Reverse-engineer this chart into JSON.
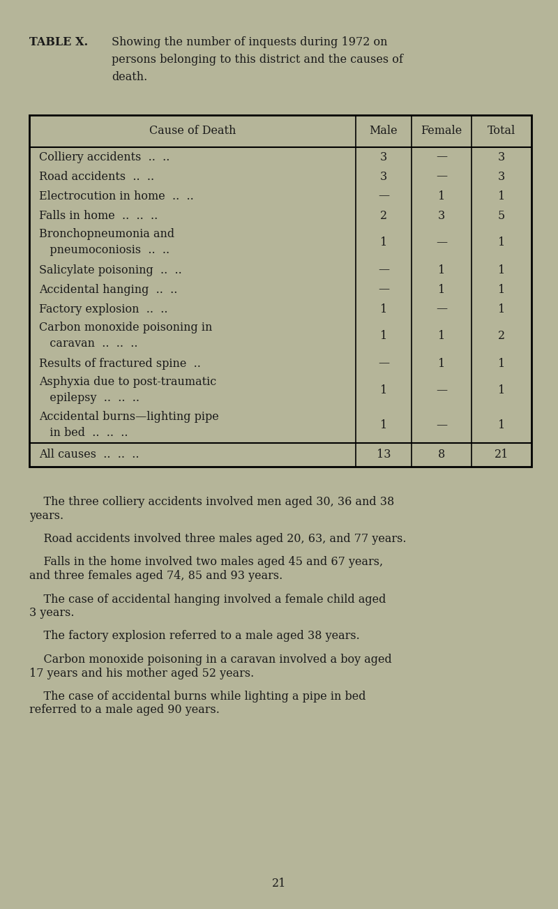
{
  "bg_color": "#b5b599",
  "text_color": "#1a1a1a",
  "title_label": "TABLE X.",
  "title_text": "Showing the number of inquests during 1972 on\npersons belonging to this district and the causes of\ndeath.",
  "table_header": [
    "Cause of Death",
    "Male",
    "Female",
    "Total"
  ],
  "table_rows": [
    [
      "Colliery accidents  ..  ..",
      "3",
      "—",
      "3"
    ],
    [
      "Road accidents  ..  ..",
      "3",
      "—",
      "3"
    ],
    [
      "Electrocution in home  ..  ..",
      "—",
      "1",
      "1"
    ],
    [
      "Falls in home  ..  ..  ..",
      "2",
      "3",
      "5"
    ],
    [
      "Bronchopneumonia and\n   pneumoconiosis  ..  ..",
      "1",
      "—",
      "1"
    ],
    [
      "Salicylate poisoning  ..  ..",
      "—",
      "1",
      "1"
    ],
    [
      "Accidental hanging  ..  ..",
      "—",
      "1",
      "1"
    ],
    [
      "Factory explosion  ..  ..",
      "1",
      "—",
      "1"
    ],
    [
      "Carbon monoxide poisoning in\n   caravan  ..  ..  ..",
      "1",
      "1",
      "2"
    ],
    [
      "Results of fractured spine  ..",
      "—",
      "1",
      "1"
    ],
    [
      "Asphyxia due to post-traumatic\n   epilepsy  ..  ..  ..",
      "1",
      "—",
      "1"
    ],
    [
      "Accidental burns—lighting pipe\n   in bed  ..  ..  ..",
      "1",
      "—",
      "1"
    ]
  ],
  "table_footer": [
    "All causes  ..  ..  ..",
    "13",
    "8",
    "21"
  ],
  "paragraphs": [
    [
      "    The three colliery accidents involved men aged 30, 36 and 38",
      "years."
    ],
    [
      "    Road accidents involved three males aged 20, 63, and 77 years."
    ],
    [
      "    Falls in the home involved two males aged 45 and 67 years,",
      "and three females aged 74, 85 and 93 years."
    ],
    [
      "    The case of accidental hanging involved a female child aged",
      "3 years."
    ],
    [
      "    The factory explosion referred to a male aged 38 years."
    ],
    [
      "    Carbon monoxide poisoning in a caravan involved a boy aged",
      "17 years and his mother aged 52 years."
    ],
    [
      "    The case of accidental burns while lighting a pipe in bed",
      "referred to a male aged 90 years."
    ]
  ],
  "page_number": "21",
  "fig_width": 8.0,
  "fig_height": 13.03,
  "dpi": 100
}
